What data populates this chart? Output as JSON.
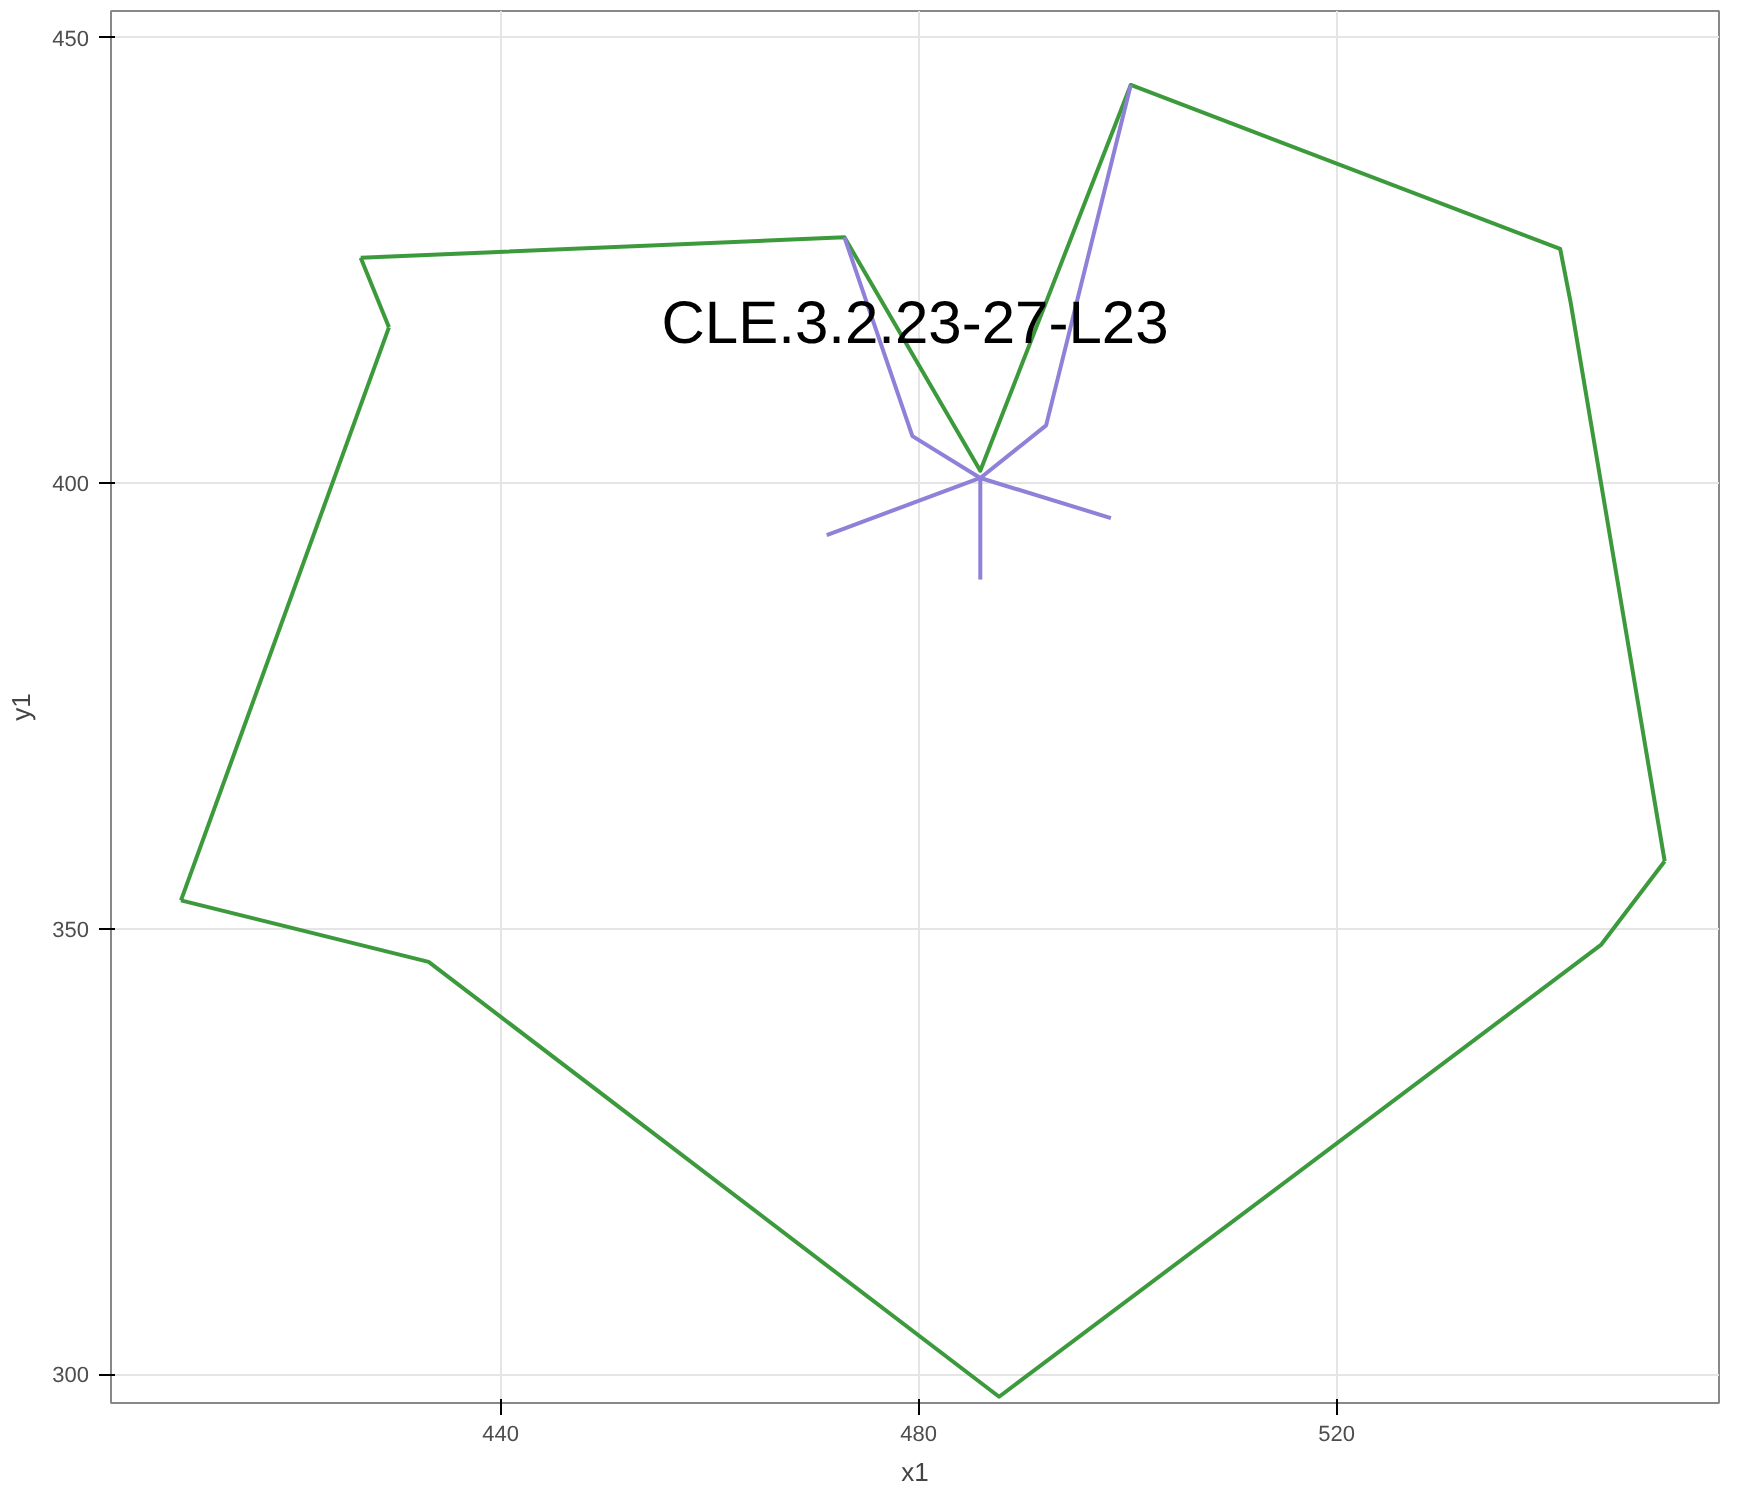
{
  "chart_data": {
    "type": "line",
    "xlabel": "x1",
    "ylabel": "y1",
    "xlim": [
      402.7,
      556.6
    ],
    "ylim": [
      296.8,
      453
    ],
    "xticks": [
      440,
      480,
      520
    ],
    "yticks": [
      300,
      350,
      400,
      450
    ],
    "grid": true,
    "series": [
      {
        "color": "#3c9a3c",
        "x": [
          426.6,
          429.3
        ],
        "values": [
          425.3,
          417.5
        ]
      },
      {
        "color": "#3c9a3c",
        "x": [
          409.4,
          429.3
        ],
        "values": [
          353.2,
          417.5
        ]
      },
      {
        "color": "#3c9a3c",
        "x": [
          409.4,
          433.1,
          487.7,
          545.3,
          551.4
        ],
        "values": [
          353.2,
          346.3,
          297.5,
          348.2,
          357.6
        ]
      },
      {
        "color": "#3c9a3c",
        "x": [
          426.6,
          472.9,
          485.9,
          500.3,
          541.4,
          542.4,
          551.4
        ],
        "values": [
          425.3,
          427.6,
          401.4,
          444.7,
          426.3,
          420.3,
          357.6
        ]
      },
      {
        "color": "#8f80d8",
        "x": [
          472.9,
          479.4,
          485.9,
          492.2,
          500.3
        ],
        "values": [
          427.6,
          405.3,
          400.6,
          406.5,
          444.7
        ]
      },
      {
        "color": "#8f80d8",
        "x": [
          471.2,
          485.9
        ],
        "values": [
          394.2,
          400.6
        ]
      },
      {
        "color": "#8f80d8",
        "x": [
          485.9,
          485.9
        ],
        "values": [
          400.6,
          389.2
        ]
      },
      {
        "color": "#8f80d8",
        "x": [
          485.9,
          498.4
        ],
        "values": [
          400.6,
          396.1
        ]
      }
    ],
    "annotations": [
      "CLE.3.2.23-27-L23"
    ]
  }
}
